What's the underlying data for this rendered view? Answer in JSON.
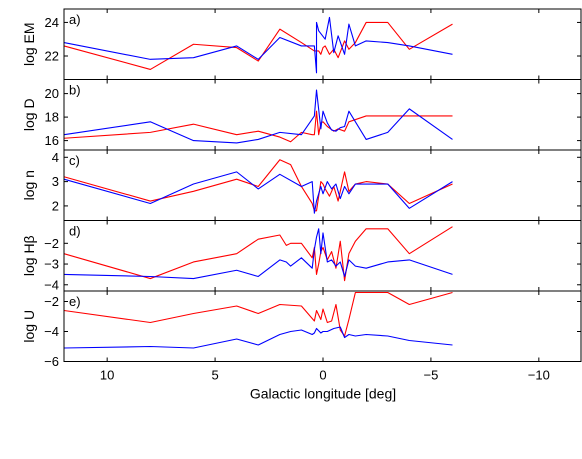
{
  "chart_data": {
    "type": "line",
    "xlabel": "Galactic longitude [deg]",
    "xlim": [
      12,
      -12
    ],
    "x_ticks": [
      10,
      5,
      0,
      -5,
      -10
    ],
    "x_tick_labels": [
      "10",
      "5",
      "0",
      "−5",
      "−10"
    ],
    "series_colors": [
      "#ff0000",
      "#0000ff"
    ],
    "panels": [
      {
        "tag": "a)",
        "ylabel": "log EM",
        "ylim": [
          20.6,
          24.8
        ],
        "y_ticks": [
          22,
          24
        ],
        "y_tick_labels": [
          "22",
          "24"
        ],
        "series": [
          {
            "color": "#ff0000",
            "x": [
              12,
              8,
              6,
              4,
              3,
              2,
              1,
              0.4,
              0.2,
              0.1,
              0,
              -0.1,
              -0.3,
              -0.5,
              -0.7,
              -1,
              -1.2,
              -1.5,
              -2,
              -3,
              -4,
              -6
            ],
            "y": [
              22.6,
              21.2,
              22.7,
              22.5,
              21.7,
              23.6,
              22.8,
              22.3,
              22.3,
              22.1,
              22.5,
              22.6,
              22.1,
              22.4,
              21.9,
              22.9,
              22.4,
              22.8,
              24.0,
              24.0,
              22.4,
              23.9
            ]
          },
          {
            "color": "#0000ff",
            "x": [
              12,
              8,
              6,
              4,
              3,
              2,
              1,
              0.4,
              0.3,
              0.3,
              0.2,
              -0.1,
              -0.3,
              -0.5,
              -0.7,
              -1,
              -1.2,
              -1.5,
              -2,
              -3,
              -4,
              -6
            ],
            "y": [
              22.8,
              21.8,
              21.9,
              22.6,
              21.8,
              23.1,
              22.6,
              22.6,
              21.0,
              24.0,
              23.5,
              23.0,
              24.3,
              22.2,
              23.2,
              22.1,
              23.9,
              22.6,
              22.9,
              22.8,
              22.6,
              22.1
            ]
          }
        ]
      },
      {
        "tag": "b)",
        "ylabel": "log D",
        "ylim": [
          15.2,
          21.2
        ],
        "y_ticks": [
          16,
          18,
          20
        ],
        "y_tick_labels": [
          "16",
          "18",
          "20"
        ],
        "series": [
          {
            "color": "#ff0000",
            "x": [
              12,
              8,
              6,
              4,
              3,
              2,
              1.5,
              1,
              0.5,
              0.4,
              0.3,
              0.2,
              0.1,
              0,
              -0.2,
              -0.5,
              -0.7,
              -1,
              -1.2,
              -2,
              -6
            ],
            "y": [
              16.2,
              16.7,
              17.4,
              16.5,
              16.8,
              16.3,
              15.9,
              16.7,
              16.5,
              16.5,
              18.5,
              16.5,
              17.5,
              17.6,
              17.2,
              16.8,
              17.0,
              16.8,
              17.6,
              18.1,
              18.1
            ]
          },
          {
            "color": "#0000ff",
            "x": [
              12,
              8,
              6,
              4,
              3,
              2,
              1,
              0.4,
              0.3,
              0.1,
              0,
              -0.2,
              -0.4,
              -0.6,
              -0.8,
              -1,
              -1.2,
              -2,
              -3,
              -4,
              -6
            ],
            "y": [
              16.5,
              17.6,
              16.0,
              15.8,
              16.1,
              16.7,
              16.5,
              18.1,
              20.3,
              17.0,
              18.5,
              17.5,
              16.9,
              16.8,
              17.1,
              17.2,
              18.5,
              16.1,
              16.7,
              18.7,
              16.1
            ]
          }
        ]
      },
      {
        "tag": "c)",
        "ylabel": "log n",
        "ylim": [
          1.4,
          4.3
        ],
        "y_ticks": [
          2,
          3,
          4
        ],
        "y_tick_labels": [
          "2",
          "3",
          "4"
        ],
        "series": [
          {
            "color": "#ff0000",
            "x": [
              12,
              8,
              6,
              4,
              3,
              2,
              1.5,
              1,
              0.5,
              0.4,
              0.3,
              0.1,
              0,
              -0.1,
              -0.3,
              -0.5,
              -0.7,
              -1,
              -1.2,
              -1.5,
              -2,
              -3,
              -4,
              -6
            ],
            "y": [
              3.2,
              2.2,
              2.6,
              3.1,
              2.8,
              3.9,
              3.7,
              2.8,
              2.1,
              1.8,
              1.8,
              3.0,
              2.9,
              2.7,
              2.4,
              2.8,
              2.2,
              3.4,
              2.6,
              2.9,
              3.0,
              2.9,
              2.1,
              2.9
            ]
          },
          {
            "color": "#0000ff",
            "x": [
              12,
              8,
              6,
              4,
              3,
              2,
              1,
              0.5,
              0.4,
              0.3,
              0.1,
              0,
              -0.2,
              -0.4,
              -0.6,
              -0.8,
              -1,
              -1.2,
              -1.5,
              -2,
              -3,
              -4,
              -6
            ],
            "y": [
              3.1,
              2.1,
              2.9,
              3.4,
              2.7,
              3.3,
              2.8,
              3.0,
              1.7,
              2.2,
              2.8,
              2.5,
              3.0,
              2.7,
              2.9,
              2.3,
              2.8,
              2.5,
              2.9,
              2.9,
              2.9,
              1.9,
              3.0
            ]
          }
        ]
      },
      {
        "tag": "d)",
        "ylabel": "log Hβ",
        "ylim": [
          -4.3,
          -0.9
        ],
        "y_ticks": [
          -4,
          -3,
          -2
        ],
        "y_tick_labels": [
          "−4",
          "−3",
          "−2"
        ],
        "series": [
          {
            "color": "#ff0000",
            "x": [
              12,
              8,
              6,
              4,
              3,
              2,
              1.7,
              1.5,
              1,
              0.5,
              0.4,
              0.3,
              0.2,
              0.1,
              0,
              -0.2,
              -0.4,
              -0.6,
              -0.8,
              -1,
              -1.2,
              -1.5,
              -2,
              -3,
              -4,
              -6
            ],
            "y": [
              -2.5,
              -3.7,
              -2.9,
              -2.5,
              -1.8,
              -1.6,
              -2.1,
              -2.0,
              -2.0,
              -2.7,
              -2.2,
              -3.5,
              -3.0,
              -2.4,
              -2.2,
              -2.8,
              -2.4,
              -3.2,
              -1.9,
              -3.8,
              -2.5,
              -1.9,
              -1.3,
              -1.3,
              -2.5,
              -1.2
            ]
          },
          {
            "color": "#0000ff",
            "x": [
              12,
              8,
              6,
              4,
              3,
              2,
              1.7,
              1.5,
              1,
              0.5,
              0.4,
              0.3,
              0.2,
              0.1,
              0,
              -0.2,
              -0.4,
              -0.6,
              -0.8,
              -1,
              -1.2,
              -1.5,
              -2,
              -3,
              -4,
              -6
            ],
            "y": [
              -3.5,
              -3.6,
              -3.7,
              -3.3,
              -3.6,
              -2.8,
              -2.9,
              -3.1,
              -2.7,
              -3.2,
              -2.3,
              -1.7,
              -1.3,
              -2.5,
              -1.5,
              -2.9,
              -2.8,
              -3.1,
              -2.9,
              -3.6,
              -2.8,
              -3.1,
              -3.2,
              -2.9,
              -2.8,
              -3.5
            ]
          }
        ]
      },
      {
        "tag": "e)",
        "ylabel": "log U",
        "ylim": [
          -6,
          -1.3
        ],
        "y_ticks": [
          -6,
          -4,
          -2
        ],
        "y_tick_labels": [
          "−6",
          "−4",
          "−2"
        ],
        "series": [
          {
            "color": "#ff0000",
            "x": [
              12,
              8,
              6,
              4,
              3,
              2,
              1,
              0.4,
              0.3,
              0.1,
              0,
              -0.2,
              -0.4,
              -0.6,
              -0.8,
              -1,
              -1.2,
              -1.5,
              -2,
              -3,
              -4,
              -6
            ],
            "y": [
              -2.6,
              -3.4,
              -2.8,
              -2.3,
              -2.8,
              -2.2,
              -2.3,
              -3.3,
              -2.6,
              -3.2,
              -2.5,
              -3.4,
              -3.3,
              -2.2,
              -3.9,
              -4.3,
              -3.2,
              -1.4,
              -1.4,
              -1.4,
              -2.2,
              -1.4
            ]
          },
          {
            "color": "#0000ff",
            "x": [
              12,
              8,
              6,
              4,
              3,
              2,
              1.5,
              1,
              0.5,
              0.4,
              0.3,
              0.1,
              0,
              -0.2,
              -0.5,
              -0.8,
              -1,
              -1.2,
              -1.5,
              -2,
              -3,
              -4,
              -6
            ],
            "y": [
              -5.1,
              -5.0,
              -5.1,
              -4.5,
              -4.9,
              -4.2,
              -4.0,
              -3.9,
              -4.2,
              -4.1,
              -3.8,
              -4.1,
              -4.0,
              -4.0,
              -3.8,
              -3.7,
              -4.4,
              -4.2,
              -4.3,
              -4.2,
              -4.3,
              -4.6,
              -4.9
            ]
          }
        ]
      }
    ]
  }
}
